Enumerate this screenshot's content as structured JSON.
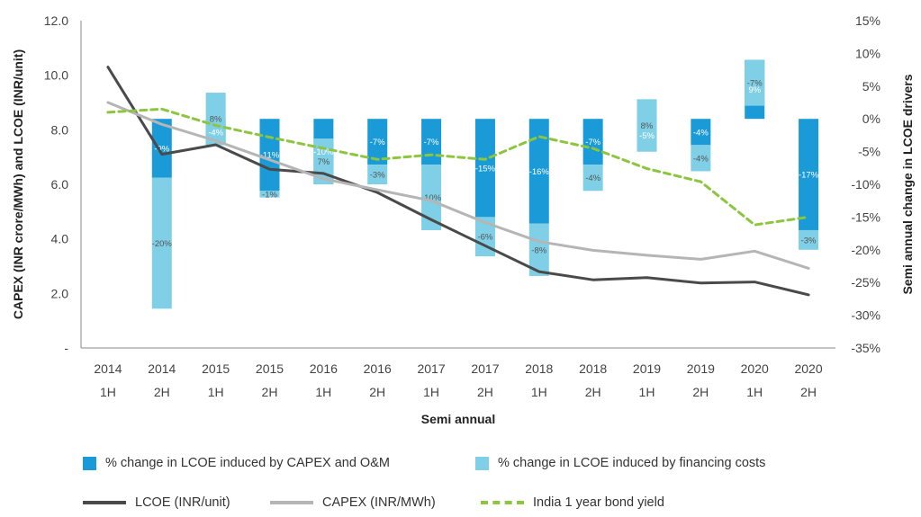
{
  "chart_data": {
    "type": "bar",
    "categories": [
      [
        "2014",
        "1H"
      ],
      [
        "2014",
        "2H"
      ],
      [
        "2015",
        "1H"
      ],
      [
        "2015",
        "2H"
      ],
      [
        "2016",
        "1H"
      ],
      [
        "2016",
        "2H"
      ],
      [
        "2017",
        "1H"
      ],
      [
        "2017",
        "2H"
      ],
      [
        "2018",
        "1H"
      ],
      [
        "2018",
        "2H"
      ],
      [
        "2019",
        "1H"
      ],
      [
        "2019",
        "2H"
      ],
      [
        "2020",
        "1H"
      ],
      [
        "2020",
        "2H"
      ]
    ],
    "xlabel": "Semi annual",
    "ylabel_left": "CAPEX (INR crore/MWh) and LCOE (INR/unit)",
    "ylabel_right": "Semi annual change in LCOE drivers",
    "left_axis": {
      "range": [
        0,
        12
      ],
      "ticks": [
        {
          "v": 0,
          "t": "-"
        },
        {
          "v": 2,
          "t": "2.0"
        },
        {
          "v": 4,
          "t": "4.0"
        },
        {
          "v": 6,
          "t": "6.0"
        },
        {
          "v": 8,
          "t": "8.0"
        },
        {
          "v": 10,
          "t": "10.0"
        },
        {
          "v": 12,
          "t": "12.0"
        }
      ]
    },
    "right_axis": {
      "range": [
        -35,
        15
      ],
      "ticks": [
        {
          "v": 15,
          "t": "15%"
        },
        {
          "v": 10,
          "t": "10%"
        },
        {
          "v": 5,
          "t": "5%"
        },
        {
          "v": 0,
          "t": "0%"
        },
        {
          "v": -5,
          "t": "-5%"
        },
        {
          "v": -10,
          "t": "-10%"
        },
        {
          "v": -15,
          "t": "-15%"
        },
        {
          "v": -20,
          "t": "-20%"
        },
        {
          "v": -25,
          "t": "-25%"
        },
        {
          "v": -30,
          "t": "-30%"
        },
        {
          "v": -35,
          "t": "-35%"
        }
      ]
    },
    "bar_baseline": 8.4,
    "bar_colors": {
      "capex_om": "#1a9ad6",
      "financing": "#7fcfe6"
    },
    "bars": [
      null,
      {
        "capex_om": -9,
        "financing": -20,
        "labels": [
          "-9%",
          "-20%"
        ]
      },
      {
        "capex_om": -4,
        "financing": 8,
        "labels": [
          "-4%",
          "8%"
        ]
      },
      {
        "capex_om": -11,
        "financing": -1,
        "labels": [
          "-11%",
          "-1%"
        ]
      },
      {
        "capex_om": -10,
        "financing": 7,
        "labels": [
          "-10%",
          "7%"
        ]
      },
      {
        "capex_om": -7,
        "financing": -3,
        "labels": [
          "-7%",
          "-3%"
        ]
      },
      {
        "capex_om": -7,
        "financing": -10,
        "labels": [
          "-7%",
          "-10%"
        ]
      },
      {
        "capex_om": -15,
        "financing": -6,
        "labels": [
          "-15%",
          "-6%"
        ]
      },
      {
        "capex_om": -16,
        "financing": -8,
        "labels": [
          "-16%",
          "-8%"
        ]
      },
      {
        "capex_om": -7,
        "financing": -4,
        "labels": [
          "-7%",
          "-4%"
        ]
      },
      {
        "capex_om": -5,
        "financing": 8,
        "labels": [
          "-5%",
          "8%"
        ]
      },
      {
        "capex_om": -4,
        "financing": -4,
        "labels": [
          "-4%",
          "-4%"
        ]
      },
      {
        "capex_om": 9,
        "financing": -7,
        "labels": [
          "9%",
          "-7%"
        ]
      },
      {
        "capex_om": -17,
        "financing": -3,
        "labels": [
          "-17%",
          "-3%"
        ]
      }
    ],
    "series": [
      {
        "name": "LCOE (INR/unit)",
        "axis": "left",
        "color": "#4a4a4a",
        "style": "solid",
        "values": [
          10.3,
          7.1,
          7.45,
          6.55,
          6.4,
          5.7,
          4.7,
          3.75,
          2.8,
          2.5,
          2.58,
          2.38,
          2.42,
          1.95
        ]
      },
      {
        "name": "CAPEX (INR/MWh)",
        "axis": "left",
        "color": "#b5b5b5",
        "style": "solid",
        "values": [
          9.0,
          8.2,
          7.6,
          6.9,
          6.2,
          5.8,
          5.4,
          4.6,
          3.9,
          3.58,
          3.4,
          3.25,
          3.55,
          2.92
        ]
      },
      {
        "name": "India 1 year bond yield",
        "axis": "right",
        "color": "#8cc63f",
        "style": "dashed",
        "values": [
          1.0,
          1.5,
          -1.0,
          -2.8,
          -4.5,
          -6.2,
          -5.5,
          -6.2,
          -2.7,
          -4.5,
          -7.6,
          -9.6,
          -16.2,
          -15.0
        ]
      }
    ]
  },
  "legend": {
    "capex_om": "% change in LCOE induced by CAPEX and O&M",
    "financing": "% change in LCOE induced by financing costs",
    "lcoe": "LCOE (INR/unit)",
    "capex": "CAPEX (INR/MWh)",
    "bond": "India 1 year bond yield"
  }
}
